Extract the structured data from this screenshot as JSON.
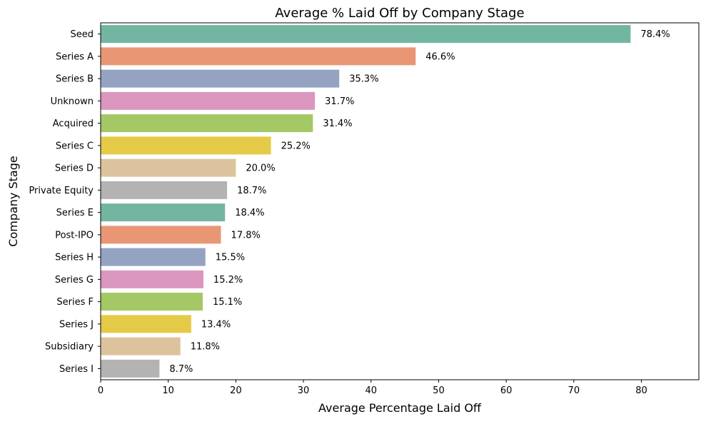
{
  "chart_data": {
    "type": "bar",
    "orientation": "horizontal",
    "title": "Average % Laid Off by Company Stage",
    "xlabel": "Average Percentage Laid Off",
    "ylabel": "Company Stage",
    "xlim": [
      0,
      88.5
    ],
    "xticks": [
      0,
      10,
      20,
      30,
      40,
      50,
      60,
      70,
      80
    ],
    "grid": false,
    "categories": [
      "Seed",
      "Series A",
      "Series B",
      "Unknown",
      "Acquired",
      "Series C",
      "Series D",
      "Private Equity",
      "Series E",
      "Post-IPO",
      "Series H",
      "Series G",
      "Series F",
      "Series J",
      "Subsidiary",
      "Series I"
    ],
    "values": [
      78.4,
      46.6,
      35.3,
      31.7,
      31.4,
      25.2,
      20.0,
      18.7,
      18.4,
      17.8,
      15.5,
      15.2,
      15.1,
      13.4,
      11.8,
      8.7
    ],
    "data_labels": [
      "78.4%",
      "46.6%",
      "35.3%",
      "31.7%",
      "31.4%",
      "25.2%",
      "20.0%",
      "18.7%",
      "18.4%",
      "17.8%",
      "15.5%",
      "15.2%",
      "15.1%",
      "13.4%",
      "11.8%",
      "8.7%"
    ],
    "palette": [
      "#72b6a1",
      "#e99675",
      "#95a3c3",
      "#db96c0",
      "#a4c865",
      "#e5ca48",
      "#dcc39e",
      "#b3b3b3"
    ]
  }
}
